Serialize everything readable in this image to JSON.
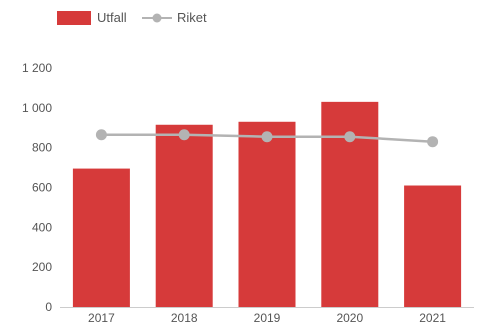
{
  "chart_data": {
    "type": "bar",
    "title": "",
    "xlabel": "",
    "ylabel": "",
    "categories": [
      "2017",
      "2018",
      "2019",
      "2020",
      "2021"
    ],
    "series": [
      {
        "name": "Utfall",
        "type": "bar",
        "color": "#d63a3a",
        "values": [
          695,
          915,
          930,
          1030,
          610
        ]
      },
      {
        "name": "Riket",
        "type": "line",
        "color": "#b3b3b3",
        "values": [
          865,
          865,
          855,
          855,
          830
        ]
      }
    ],
    "ylim": [
      0,
      1200
    ],
    "yticks": [
      0,
      200,
      400,
      600,
      800,
      1000,
      1200
    ],
    "ytick_labels": [
      "0",
      "200",
      "400",
      "600",
      "800",
      "1 000",
      "1 200"
    ],
    "grid": false,
    "legend_position": "top-left"
  }
}
